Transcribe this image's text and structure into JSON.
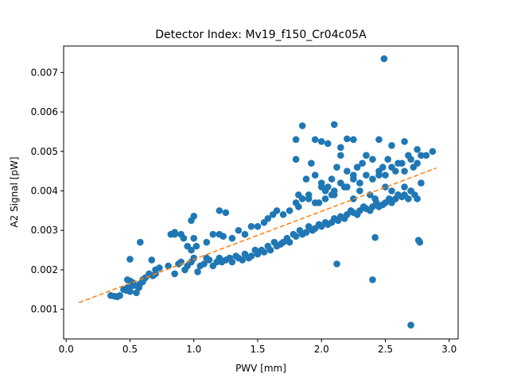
{
  "chart_data": {
    "type": "scatter",
    "title": "Detector Index: Mv19_f150_Cr04c05A",
    "xlabel": "PWV [mm]",
    "ylabel": "A2 Signal [pW]",
    "xlim": [
      -0.02,
      3.07
    ],
    "ylim": [
      0.00025,
      0.00767
    ],
    "xticks": [
      0.0,
      0.5,
      1.0,
      1.5,
      2.0,
      2.5,
      3.0
    ],
    "xtick_labels": [
      "0.0",
      "0.5",
      "1.0",
      "1.5",
      "2.0",
      "2.5",
      "3.0"
    ],
    "yticks": [
      0.001,
      0.002,
      0.003,
      0.004,
      0.005,
      0.006,
      0.007
    ],
    "ytick_labels": [
      "0.001",
      "0.002",
      "0.003",
      "0.004",
      "0.005",
      "0.006",
      "0.007"
    ],
    "grid": false,
    "series": [
      {
        "name": "data",
        "style": "markers",
        "color": "#1f77b4",
        "x": [
          0.35,
          0.38,
          0.4,
          0.42,
          0.45,
          0.47,
          0.48,
          0.5,
          0.52,
          0.55,
          0.57,
          0.58,
          0.6,
          0.62,
          0.65,
          0.68,
          0.7,
          0.48,
          0.5,
          0.52,
          0.55,
          0.6,
          0.65,
          0.7,
          0.73,
          0.8,
          0.85,
          0.88,
          0.9,
          0.93,
          0.95,
          0.98,
          1.0,
          1.03,
          1.05,
          1.08,
          1.1,
          1.12,
          1.15,
          1.18,
          1.2,
          1.22,
          1.25,
          1.28,
          1.3,
          1.33,
          1.35,
          1.38,
          1.4,
          1.43,
          1.45,
          1.48,
          1.5,
          1.53,
          1.55,
          1.58,
          1.6,
          1.63,
          1.65,
          1.68,
          1.7,
          1.73,
          1.75,
          1.78,
          1.8,
          1.83,
          1.85,
          1.88,
          1.9,
          1.93,
          1.95,
          1.98,
          2.0,
          2.03,
          2.05,
          2.08,
          2.1,
          2.13,
          2.15,
          2.18,
          2.2,
          2.23,
          2.25,
          2.28,
          2.3,
          2.33,
          2.35,
          2.38,
          2.4,
          2.43,
          2.45,
          2.48,
          2.5,
          2.53,
          2.55,
          2.58,
          2.6,
          2.63,
          2.65,
          2.68,
          2.7,
          2.73,
          2.75,
          0.5,
          0.58,
          0.67,
          0.82,
          0.85,
          0.9,
          0.95,
          0.98,
          1.0,
          1.1,
          1.15,
          1.2,
          1.23,
          1.3,
          1.35,
          1.4,
          1.45,
          1.5,
          1.55,
          1.58,
          1.62,
          1.65,
          1.7,
          1.75,
          1.8,
          1.82,
          1.85,
          1.9,
          1.95,
          2.0,
          2.03,
          2.08,
          2.1,
          2.15,
          2.2,
          2.25,
          2.3,
          2.35,
          2.4,
          2.45,
          2.5,
          2.55,
          2.6,
          2.65,
          2.7,
          2.75,
          2.78,
          1.8,
          1.88,
          1.92,
          1.95,
          2.0,
          2.05,
          2.08,
          2.12,
          2.15,
          2.2,
          2.25,
          2.28,
          2.32,
          2.35,
          2.4,
          2.45,
          2.48,
          2.52,
          2.58,
          2.63,
          2.68,
          2.72,
          1.82,
          1.9,
          1.98,
          2.03,
          2.1,
          2.18,
          2.25,
          2.3,
          2.38,
          2.42,
          2.5,
          2.55,
          2.6,
          2.65,
          2.7,
          2.78,
          2.82,
          2.87,
          1.8,
          2.1,
          1.85,
          2.2,
          1.95,
          2.0,
          2.05,
          2.15,
          2.25,
          2.35,
          2.45,
          2.55,
          2.65,
          2.75,
          2.77,
          2.76,
          2.42,
          2.12,
          2.7,
          2.49,
          2.4,
          1.0,
          1.02,
          0.98,
          0.85,
          0.92,
          1.25,
          1.2
        ],
        "y": [
          0.00135,
          0.00133,
          0.00132,
          0.00135,
          0.0015,
          0.00148,
          0.00155,
          0.00145,
          0.0016,
          0.00142,
          0.00155,
          0.00165,
          0.0017,
          0.0018,
          0.0019,
          0.00185,
          0.0019,
          0.00175,
          0.00172,
          0.00168,
          0.0016,
          0.00175,
          0.00188,
          0.002,
          0.00205,
          0.0021,
          0.0019,
          0.00215,
          0.0022,
          0.002,
          0.0021,
          0.0022,
          0.0023,
          0.00195,
          0.0021,
          0.00215,
          0.0023,
          0.00225,
          0.0021,
          0.0022,
          0.0023,
          0.0022,
          0.00225,
          0.0023,
          0.0022,
          0.00235,
          0.0023,
          0.00225,
          0.0024,
          0.0023,
          0.00235,
          0.0025,
          0.0024,
          0.0025,
          0.00245,
          0.0026,
          0.0025,
          0.0027,
          0.0026,
          0.00265,
          0.0027,
          0.0028,
          0.0027,
          0.0029,
          0.00285,
          0.003,
          0.0029,
          0.00295,
          0.0031,
          0.003,
          0.00305,
          0.00315,
          0.0031,
          0.0032,
          0.00315,
          0.0032,
          0.0033,
          0.00325,
          0.00335,
          0.0033,
          0.0034,
          0.0035,
          0.00345,
          0.0034,
          0.0035,
          0.0036,
          0.00355,
          0.0035,
          0.0036,
          0.0037,
          0.0036,
          0.00365,
          0.0037,
          0.0038,
          0.0037,
          0.0038,
          0.0039,
          0.00385,
          0.0039,
          0.0038,
          0.004,
          0.0039,
          0.0038,
          0.00227,
          0.0027,
          0.00225,
          0.0029,
          0.00295,
          0.0029,
          0.0026,
          0.00325,
          0.0028,
          0.0027,
          0.0029,
          0.0029,
          0.00285,
          0.0028,
          0.003,
          0.0029,
          0.0031,
          0.0031,
          0.0032,
          0.0033,
          0.0034,
          0.0035,
          0.0034,
          0.0035,
          0.0037,
          0.0036,
          0.0038,
          0.0039,
          0.0037,
          0.0041,
          0.0038,
          0.0039,
          0.004,
          0.0042,
          0.0041,
          0.0043,
          0.0042,
          0.0044,
          0.0043,
          0.0045,
          0.0044,
          0.0046,
          0.0047,
          0.0045,
          0.0048,
          0.0047,
          0.0049,
          0.0048,
          0.0043,
          0.0047,
          0.0044,
          0.0042,
          0.0041,
          0.0043,
          0.0046,
          0.0049,
          0.0045,
          0.0044,
          0.0046,
          0.0047,
          0.0049,
          0.0048,
          0.0044,
          0.0046,
          0.0048,
          0.0045,
          0.0047,
          0.0049,
          0.0046,
          0.0039,
          0.0038,
          0.0037,
          0.004,
          0.0039,
          0.0041,
          0.0038,
          0.004,
          0.0039,
          0.0038,
          0.0041,
          0.004,
          0.0039,
          0.0041,
          0.004,
          0.0042,
          0.0049,
          0.005,
          0.0053,
          0.00568,
          0.00565,
          0.00532,
          0.0053,
          0.00525,
          0.0052,
          0.0051,
          0.0053,
          0.0049,
          0.0053,
          0.00515,
          0.00525,
          0.00505,
          0.0027,
          0.00275,
          0.00282,
          0.00215,
          0.0006,
          0.00735,
          0.00175,
          0.00336,
          0.0026,
          0.0025,
          0.0029,
          0.0028,
          0.00345,
          0.0035
        ]
      },
      {
        "name": "fit",
        "style": "dashed-line",
        "color": "#ff7f0e",
        "x": [
          0.1,
          2.9
        ],
        "y": [
          0.00117,
          0.00458
        ]
      }
    ]
  }
}
